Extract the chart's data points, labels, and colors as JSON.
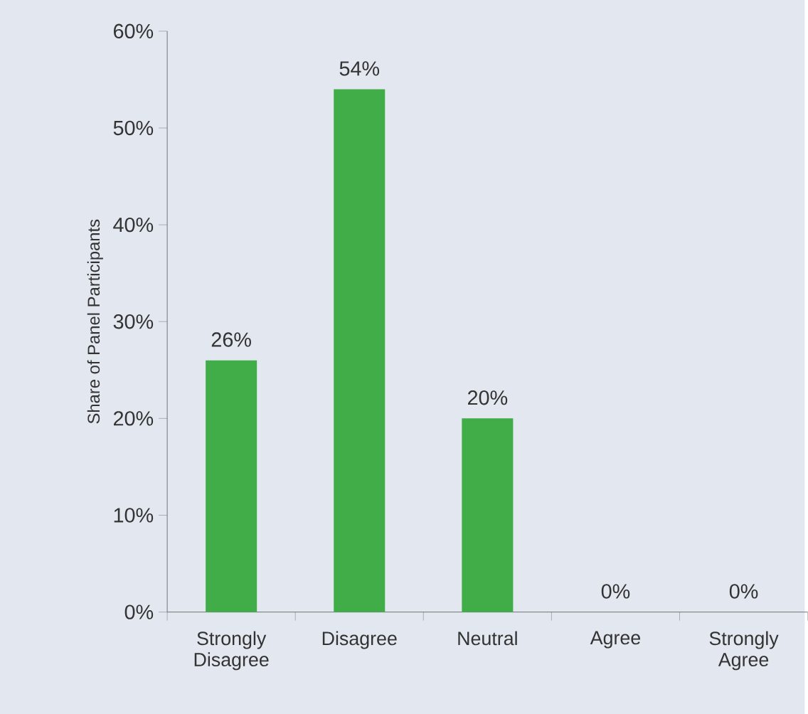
{
  "chart_data": {
    "type": "bar",
    "ylabel": "Share of Panel Participants",
    "categories": [
      "Strongly Disagree",
      "Disagree",
      "Neutral",
      "Agree",
      "Strongly Agree"
    ],
    "values": [
      26,
      54,
      20,
      0,
      0
    ],
    "value_labels": [
      "26%",
      "54%",
      "20%",
      "0%",
      "0%"
    ],
    "color": "#40ad48",
    "ylim": [
      0,
      60
    ],
    "yticks": [
      {
        "value": 0,
        "label": "0%"
      },
      {
        "value": 10,
        "label": "10%"
      },
      {
        "value": 20,
        "label": "20%"
      },
      {
        "value": 30,
        "label": "30%"
      },
      {
        "value": 40,
        "label": "40%"
      },
      {
        "value": 50,
        "label": "50%"
      },
      {
        "value": 60,
        "label": "60%"
      }
    ],
    "grid": false
  }
}
